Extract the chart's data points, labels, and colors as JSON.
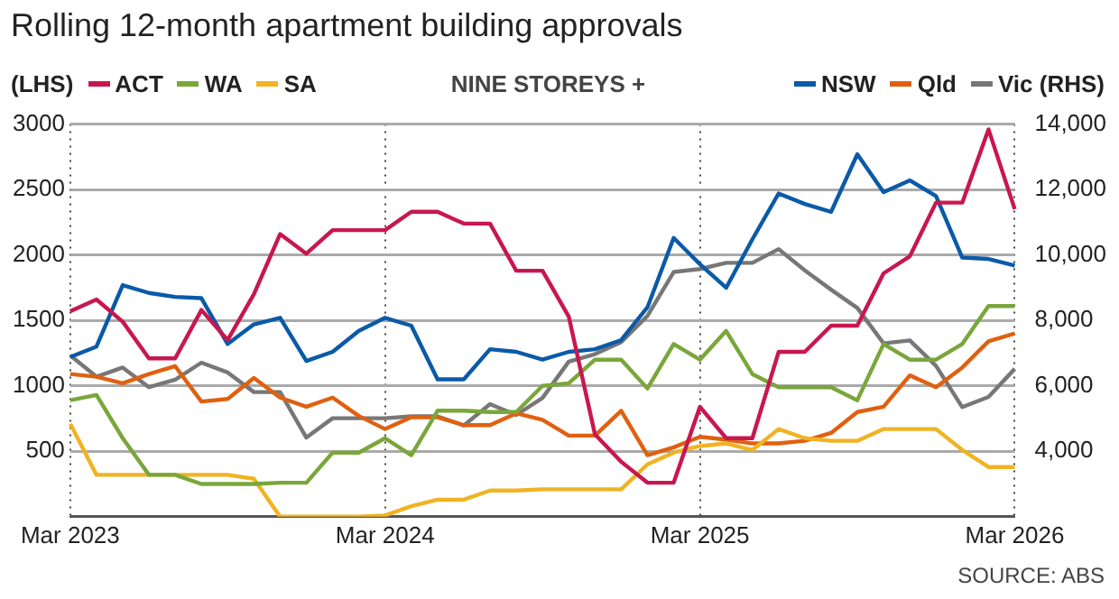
{
  "chart_data": {
    "type": "line",
    "title": "Rolling 12-month apartment building approvals",
    "subtitle": "NINE STOREYS +",
    "ylabel": "(LHS)",
    "categories": [
      "Mar 2023",
      null,
      null,
      null,
      null,
      null,
      null,
      null,
      null,
      null,
      null,
      null,
      "Mar 2024",
      null,
      null,
      null,
      null,
      null,
      null,
      null,
      null,
      null,
      null,
      null,
      "Mar 2025",
      null,
      null,
      null,
      null,
      null,
      null,
      null,
      null,
      null,
      null,
      null,
      "Mar 2026"
    ],
    "series": [
      {
        "name": "ACT",
        "color": "#c8174f",
        "values": [
          1570,
          1660,
          1490,
          1210,
          1210,
          1580,
          1350,
          1700,
          2160,
          2010,
          2190,
          2190,
          2190,
          2330,
          2330,
          2240,
          2240,
          1880,
          1880,
          1530,
          630,
          420,
          260,
          260,
          840,
          600,
          600,
          1260,
          1260,
          1460,
          1460,
          1860,
          1990,
          2400,
          2400,
          2960,
          2350
        ]
      },
      {
        "name": "WA",
        "color": "#7aa63a",
        "values": [
          890,
          930,
          600,
          320,
          320,
          250,
          250,
          250,
          260,
          260,
          490,
          490,
          600,
          470,
          810,
          810,
          800,
          800,
          1000,
          1020,
          1200,
          1200,
          980,
          1320,
          1200,
          1420,
          1090,
          990,
          990,
          990,
          890,
          1320,
          1200,
          1200,
          1320,
          1610,
          1610
        ]
      },
      {
        "name": "SA",
        "color": "#f0b323",
        "values": [
          710,
          320,
          320,
          320,
          320,
          320,
          320,
          290,
          0,
          0,
          0,
          0,
          10,
          80,
          130,
          130,
          200,
          200,
          210,
          210,
          210,
          210,
          400,
          490,
          540,
          560,
          510,
          670,
          600,
          580,
          580,
          670,
          670,
          670,
          510,
          380,
          380
        ]
      },
      {
        "name": "NSW",
        "color": "#0a5aa8",
        "values": [
          1220,
          1300,
          1770,
          1710,
          1680,
          1670,
          1320,
          1470,
          1520,
          1190,
          1260,
          1420,
          1520,
          1460,
          1050,
          1050,
          1280,
          1260,
          1200,
          1260,
          1280,
          1350,
          1600,
          2130,
          1930,
          1750,
          2120,
          2470,
          2390,
          2330,
          2770,
          2480,
          2570,
          2450,
          1980,
          1970,
          1920
        ]
      },
      {
        "name": "Qld",
        "color": "#e06010",
        "values": [
          1090,
          1070,
          1020,
          1090,
          1150,
          880,
          900,
          1060,
          910,
          840,
          910,
          770,
          670,
          760,
          760,
          700,
          700,
          790,
          740,
          620,
          620,
          810,
          470,
          530,
          610,
          590,
          560,
          560,
          580,
          640,
          800,
          840,
          1080,
          990,
          1140,
          1340,
          1400
        ]
      },
      {
        "name": "Vic (RHS)",
        "color": "#777777",
        "axis": "y2",
        "values": [
          6930,
          6280,
          6560,
          5960,
          6190,
          6710,
          6410,
          5810,
          5810,
          4420,
          5010,
          5010,
          5010,
          5070,
          5070,
          4790,
          5440,
          5110,
          5630,
          6740,
          6970,
          7340,
          8140,
          9480,
          9570,
          9760,
          9760,
          10180,
          9530,
          8940,
          8380,
          7300,
          7390,
          6610,
          5350,
          5660,
          6520
        ]
      }
    ],
    "ylim": [
      0,
      3000
    ],
    "yticks": [
      {
        "value": 0,
        "label": null
      },
      500,
      1000,
      1500,
      2000,
      2500,
      3000
    ],
    "y2lim": [
      2000,
      14000
    ],
    "y2ticks": [
      {
        "value": 2000,
        "label": null
      },
      {
        "value": 4000,
        "label": "4,000"
      },
      {
        "value": 6000,
        "label": "6,000"
      },
      {
        "value": 8000,
        "label": "8,000"
      },
      {
        "value": 10000,
        "label": "10,000"
      },
      {
        "value": 12000,
        "label": "12,000"
      },
      {
        "value": 14000,
        "label": "14,000"
      }
    ],
    "grid": true,
    "legend": "top",
    "marker": "none",
    "line_style": "solid",
    "annotations": [
      "SOURCE: ABS"
    ]
  }
}
